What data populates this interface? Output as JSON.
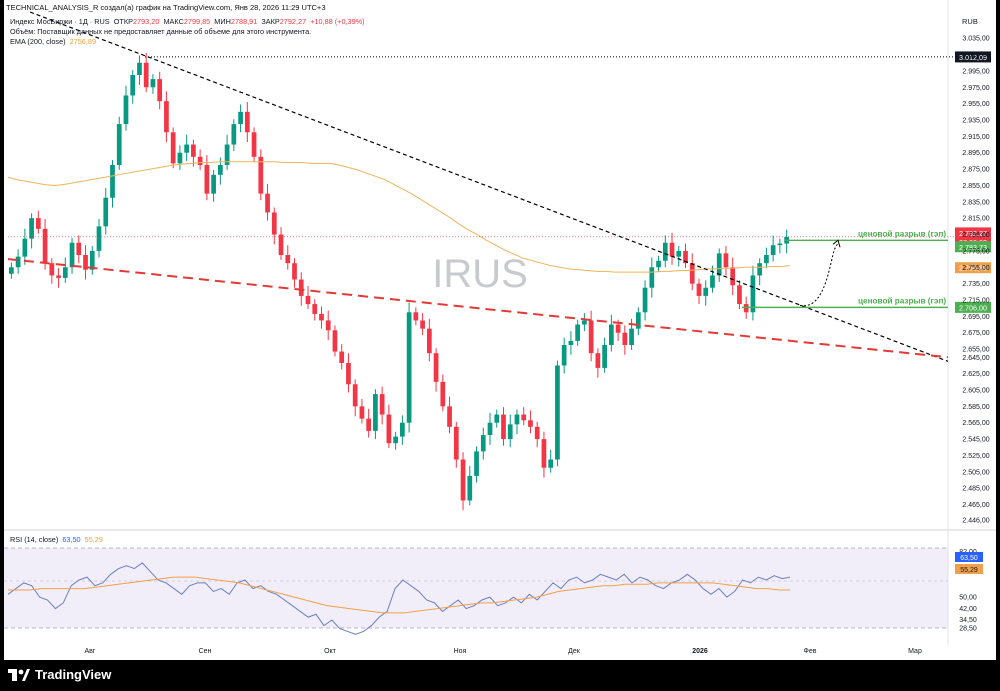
{
  "header": {
    "credit": "TECHNICAL_ANALYSIS_R создал(а) график на TradingView.com, Янв 28, 2026 11:29 UTC+3",
    "instrument": "Индекс МосБиржи · 1Д · RUS",
    "ohlc": {
      "open_label": "ОТКР",
      "open": "2793,20",
      "high_label": "МАКС",
      "high": "2799,85",
      "low_label": "МИН",
      "low": "2788,91",
      "close_label": "ЗАКР",
      "close": "2792,27",
      "change": "+10,88 (+0,39%)"
    },
    "volume_note": "Объём: Поставщик данных не предоставляет данные об объеме для этого инструмента.",
    "ema_label": "EMA (200, close)",
    "ema_value": "2756,89",
    "currency": "RUB"
  },
  "rsi_legend": {
    "label": "RSI (14, close)",
    "rsi": "63,50",
    "ma": "55,29"
  },
  "footer": {
    "brand": "TradingView"
  },
  "colors": {
    "up": "#089981",
    "down": "#f23645",
    "ema": "#f0b35a",
    "rsi": "#6a7fc2",
    "rsi_ma": "#f0a04b",
    "annot": "#4caf50"
  },
  "chart_data": {
    "type": "candlestick",
    "watermark": "IRUS",
    "y_range": [
      2440,
      3045
    ],
    "y_ticks": [
      "3.035,00",
      "3.015,00",
      "2.995,00",
      "2.975,00",
      "2.955,00",
      "2.935,00",
      "2.915,00",
      "2.895,00",
      "2.875,00",
      "2.855,00",
      "2.835,00",
      "2.815,00",
      "2.795,00",
      "2.775,00",
      "2.755,00",
      "2.735,00",
      "2.715,00",
      "2.695,00",
      "2.675,00",
      "2.655,00",
      "2.645,00",
      "2.625,00",
      "2.605,00",
      "2.585,00",
      "2.565,00",
      "2.545,00",
      "2.525,00",
      "2.505,00",
      "2.485,00",
      "2.465,00",
      "2.446,00"
    ],
    "x_labels": [
      "Авг",
      "Сен",
      "Окт",
      "Ноя",
      "Дек",
      "2026",
      "Фев",
      "Мар"
    ],
    "price_labels": {
      "max_line": "3.012,09",
      "last_price": "2.792,27",
      "countdown": "07:30:03",
      "gap_top": "2.783,73",
      "ema": "2.756,89",
      "gap_bottom": "2.706,00"
    },
    "annotations": [
      "ценовой разрыв (гэп)",
      "ценовой разрыв (гэп)"
    ],
    "closes": [
      2755,
      2768,
      2790,
      2815,
      2802,
      2760,
      2745,
      2742,
      2755,
      2785,
      2770,
      2752,
      2775,
      2805,
      2840,
      2880,
      2930,
      2965,
      2990,
      3005,
      2975,
      2985,
      2958,
      2920,
      2882,
      2895,
      2905,
      2890,
      2880,
      2845,
      2868,
      2880,
      2905,
      2930,
      2945,
      2920,
      2890,
      2845,
      2822,
      2795,
      2770,
      2760,
      2740,
      2720,
      2710,
      2698,
      2690,
      2678,
      2652,
      2638,
      2612,
      2585,
      2570,
      2555,
      2600,
      2575,
      2540,
      2548,
      2565,
      2700,
      2690,
      2680,
      2650,
      2615,
      2585,
      2560,
      2520,
      2470,
      2500,
      2530,
      2550,
      2565,
      2575,
      2545,
      2563,
      2575,
      2568,
      2560,
      2545,
      2510,
      2520,
      2635,
      2660,
      2665,
      2685,
      2690,
      2650,
      2632,
      2660,
      2685,
      2675,
      2660,
      2680,
      2700,
      2730,
      2755,
      2763,
      2785,
      2768,
      2775,
      2760,
      2735,
      2720,
      2730,
      2745,
      2772,
      2755,
      2733,
      2710,
      2700,
      2745,
      2760,
      2770,
      2782,
      2784,
      2792
    ],
    "ema200": [
      2865,
      2862,
      2860,
      2858,
      2856,
      2855,
      2856,
      2858,
      2860,
      2862,
      2864,
      2866,
      2868,
      2870,
      2872,
      2874,
      2876,
      2878,
      2880,
      2881,
      2882,
      2883,
      2883,
      2884,
      2884,
      2884,
      2884,
      2884,
      2884,
      2884,
      2883,
      2883,
      2883,
      2882,
      2882,
      2882,
      2880,
      2877,
      2874,
      2870,
      2866,
      2862,
      2856,
      2850,
      2844,
      2837,
      2830,
      2823,
      2816,
      2808,
      2801,
      2795,
      2788,
      2782,
      2776,
      2771,
      2766,
      2763,
      2760,
      2757,
      2755,
      2753,
      2752,
      2751,
      2750,
      2750,
      2749,
      2749,
      2749,
      2749,
      2749,
      2750,
      2750,
      2751,
      2751,
      2752,
      2753,
      2753,
      2754,
      2754,
      2755,
      2755,
      2755,
      2756,
      2756,
      2757
    ],
    "rsi": [
      52,
      56,
      60,
      58,
      50,
      48,
      42,
      46,
      58,
      62,
      64,
      58,
      60,
      66,
      70,
      72,
      70,
      74,
      68,
      62,
      60,
      56,
      52,
      58,
      60,
      60,
      54,
      56,
      52,
      60,
      62,
      56,
      58,
      54,
      52,
      48,
      44,
      40,
      36,
      38,
      30,
      34,
      28,
      26,
      24,
      26,
      30,
      36,
      40,
      56,
      62,
      58,
      54,
      48,
      46,
      40,
      44,
      48,
      42,
      44,
      48,
      50,
      44,
      46,
      50,
      46,
      52,
      48,
      54,
      60,
      56,
      62,
      64,
      60,
      62,
      66,
      64,
      62,
      66,
      60,
      64,
      62,
      58,
      56,
      60,
      62,
      66,
      62,
      56,
      52,
      56,
      50,
      54,
      62,
      60,
      64,
      62,
      65,
      63,
      64
    ],
    "rsi_ma": [
      55,
      55,
      55,
      56,
      56,
      56,
      56,
      56,
      57,
      58,
      59,
      60,
      61,
      62,
      63,
      64,
      64,
      64,
      63,
      62,
      61,
      60,
      58,
      56,
      54,
      52,
      50,
      48,
      46,
      44,
      43,
      42,
      41,
      40,
      39,
      39,
      39,
      40,
      41,
      42,
      43,
      44,
      45,
      46,
      46,
      47,
      48,
      49,
      50,
      52,
      54,
      55,
      56,
      57,
      58,
      58,
      59,
      59,
      59,
      60,
      60,
      60,
      60,
      60,
      60,
      59,
      58,
      57,
      56,
      56,
      55,
      55
    ]
  }
}
